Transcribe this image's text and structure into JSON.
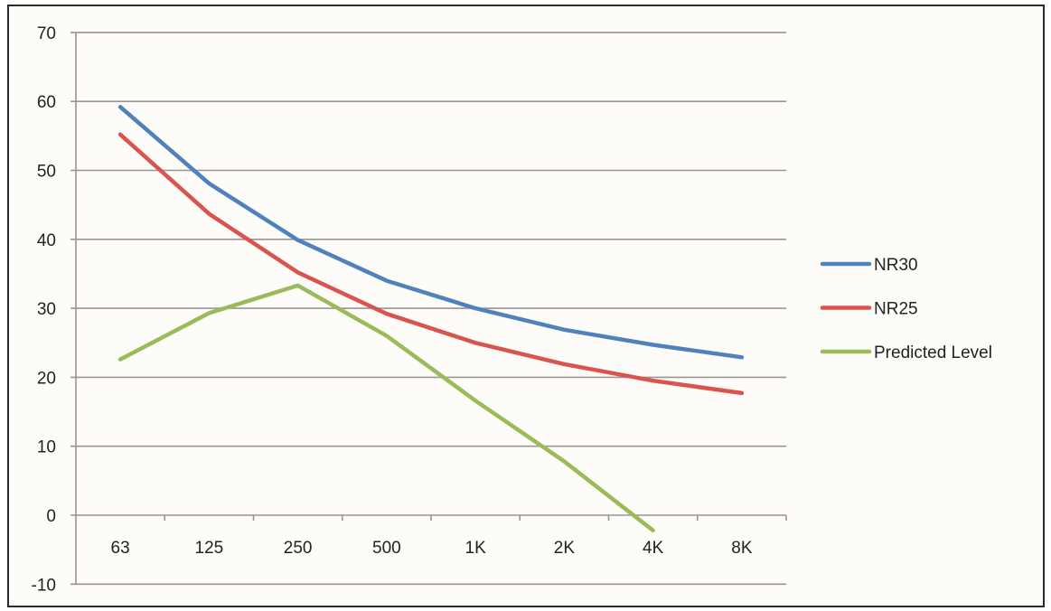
{
  "chart_data": {
    "type": "line",
    "title": "",
    "xlabel": "",
    "ylabel": "",
    "categories": [
      "63",
      "125",
      "250",
      "500",
      "1K",
      "2K",
      "4K",
      "8K"
    ],
    "series": [
      {
        "name": "NR30",
        "color": "#4f81bd",
        "values": [
          59.2,
          48.1,
          39.9,
          34.0,
          30.0,
          26.9,
          24.7,
          22.9
        ]
      },
      {
        "name": "NR25",
        "color": "#d9534f",
        "values": [
          55.2,
          43.7,
          35.2,
          29.2,
          25.0,
          21.9,
          19.5,
          17.7
        ]
      },
      {
        "name": "Predicted Level",
        "color": "#9bbb59",
        "values": [
          22.6,
          29.3,
          33.3,
          26.0,
          16.6,
          7.8,
          -2.2,
          null
        ]
      }
    ],
    "ylim": [
      -10,
      70
    ],
    "yticks": [
      70,
      60,
      50,
      40,
      30,
      20,
      10,
      0,
      -10
    ],
    "grid": true,
    "legend_position": "right"
  }
}
